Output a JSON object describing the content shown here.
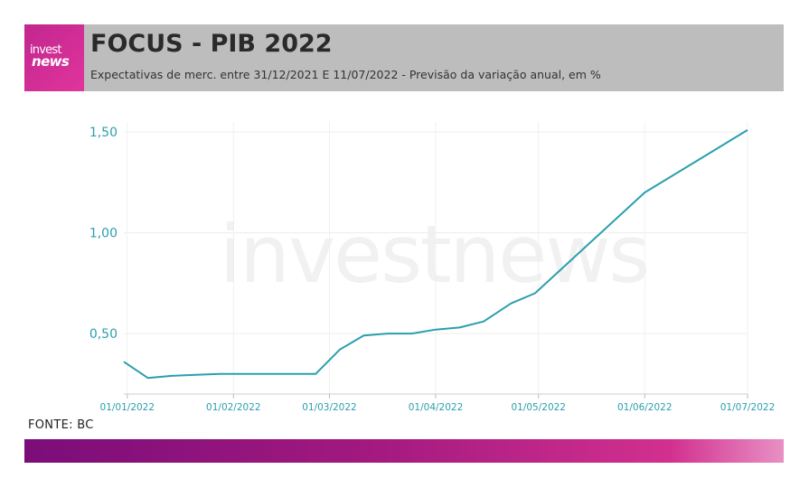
{
  "header": {
    "logo_top": "invest",
    "logo_bottom": "news",
    "title": "FOCUS - PIB 2022",
    "subtitle": "Expectativas de merc. entre 31/12/2021 E 11/07/2022 - Previsão da variação anual, em %"
  },
  "watermark": "investnews",
  "source": "FONTE: BC",
  "colors": {
    "line": "#2a9fae",
    "axis_text": "#2a9fae",
    "header_bg": "#bdbdbd",
    "brand": "#c2268f"
  },
  "chart_data": {
    "type": "line",
    "title": "FOCUS - PIB 2022",
    "xlabel": "",
    "ylabel": "",
    "ylim": [
      0.2,
      1.55
    ],
    "xlim": [
      "2021-12-31",
      "2022-07-01"
    ],
    "yticks": [
      0.5,
      1.0,
      1.5
    ],
    "ytick_labels": [
      "0,50",
      "1,00",
      "1,50"
    ],
    "xticks": [
      "2022-01-01",
      "2022-02-01",
      "2022-03-01",
      "2022-04-01",
      "2022-05-01",
      "2022-06-01",
      "2022-07-01"
    ],
    "xtick_labels": [
      "01/01/2022",
      "01/02/2022",
      "01/03/2022",
      "01/04/2022",
      "01/05/2022",
      "01/06/2022",
      "01/07/2022"
    ],
    "grid": true,
    "series": [
      {
        "x": [
          "2021-12-31",
          "2022-01-07",
          "2022-01-14",
          "2022-01-21",
          "2022-01-28",
          "2022-02-04",
          "2022-02-11",
          "2022-02-18",
          "2022-02-25",
          "2022-03-04",
          "2022-03-11",
          "2022-03-18",
          "2022-03-25",
          "2022-04-01",
          "2022-04-08",
          "2022-04-15",
          "2022-04-23",
          "2022-04-30",
          "2022-06-01",
          "2022-07-01"
        ],
        "values": [
          0.36,
          0.28,
          0.29,
          0.295,
          0.3,
          0.3,
          0.3,
          0.3,
          0.3,
          0.42,
          0.49,
          0.5,
          0.5,
          0.52,
          0.53,
          0.56,
          0.65,
          0.7,
          1.2,
          1.51
        ]
      }
    ]
  }
}
